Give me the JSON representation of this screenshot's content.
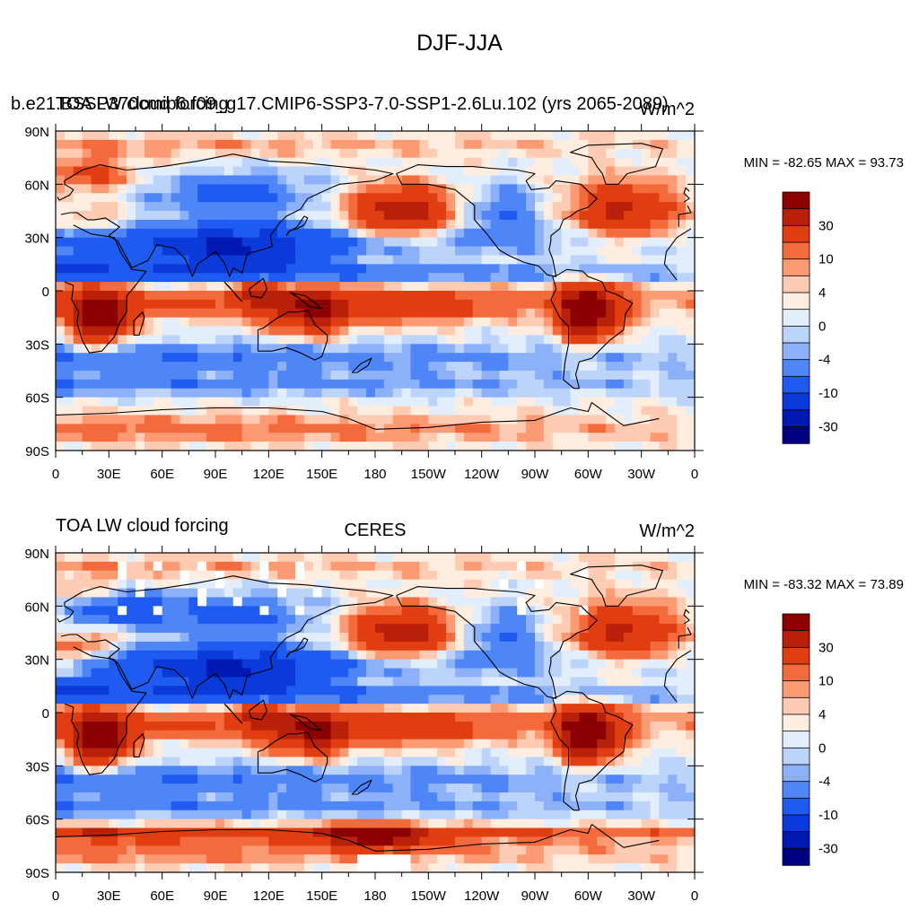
{
  "title": "DJF-JJA",
  "colors": {
    "palette": [
      "#000080",
      "#0019b3",
      "#0a3ad9",
      "#1f5bf0",
      "#4f86f7",
      "#8cb1f8",
      "#bcd3fa",
      "#e3eefd",
      "#ffeee0",
      "#ffccb3",
      "#fc9a73",
      "#f36a3c",
      "#e03e10",
      "#b8200a",
      "#8b0000"
    ],
    "coastline": "#000000",
    "missing": "#ffffff"
  },
  "chart_data": [
    {
      "type": "map",
      "title_left": "b.e21.BSSP370cmip6.f09_g17.CMIP6-SSP3-7.0-SSP1-2.6Lu.102 (yrs 2065-2089)",
      "title_left_overlap": "TOA LW cloud forcing",
      "title_center": "",
      "units": "W/m^2",
      "stats": "MIN = -82.65 MAX =  93.73",
      "lat_labels": [
        "90N",
        "60N",
        "30N",
        "0",
        "30S",
        "60S",
        "90S"
      ],
      "lon_labels": [
        "0",
        "30E",
        "60E",
        "90E",
        "120E",
        "150E",
        "180",
        "150W",
        "120W",
        "90W",
        "60W",
        "30W",
        "0"
      ],
      "colorbar_labels": [
        "30",
        "10",
        "4",
        "0",
        "-4",
        "-10",
        "-30"
      ],
      "min": -82.65,
      "max": 93.73
    },
    {
      "type": "map",
      "title_left": "TOA LW cloud forcing",
      "title_center": "CERES",
      "units": "W/m^2",
      "stats": "MIN = -83.32 MAX =  73.89",
      "lat_labels": [
        "90N",
        "60N",
        "30N",
        "0",
        "30S",
        "60S",
        "90S"
      ],
      "lon_labels": [
        "0",
        "30E",
        "60E",
        "90E",
        "120E",
        "150E",
        "180",
        "150W",
        "120W",
        "90W",
        "60W",
        "30W",
        "0"
      ],
      "colorbar_labels": [
        "30",
        "10",
        "4",
        "0",
        "-4",
        "-10",
        "-30"
      ],
      "min": -83.32,
      "max": 73.89
    }
  ]
}
